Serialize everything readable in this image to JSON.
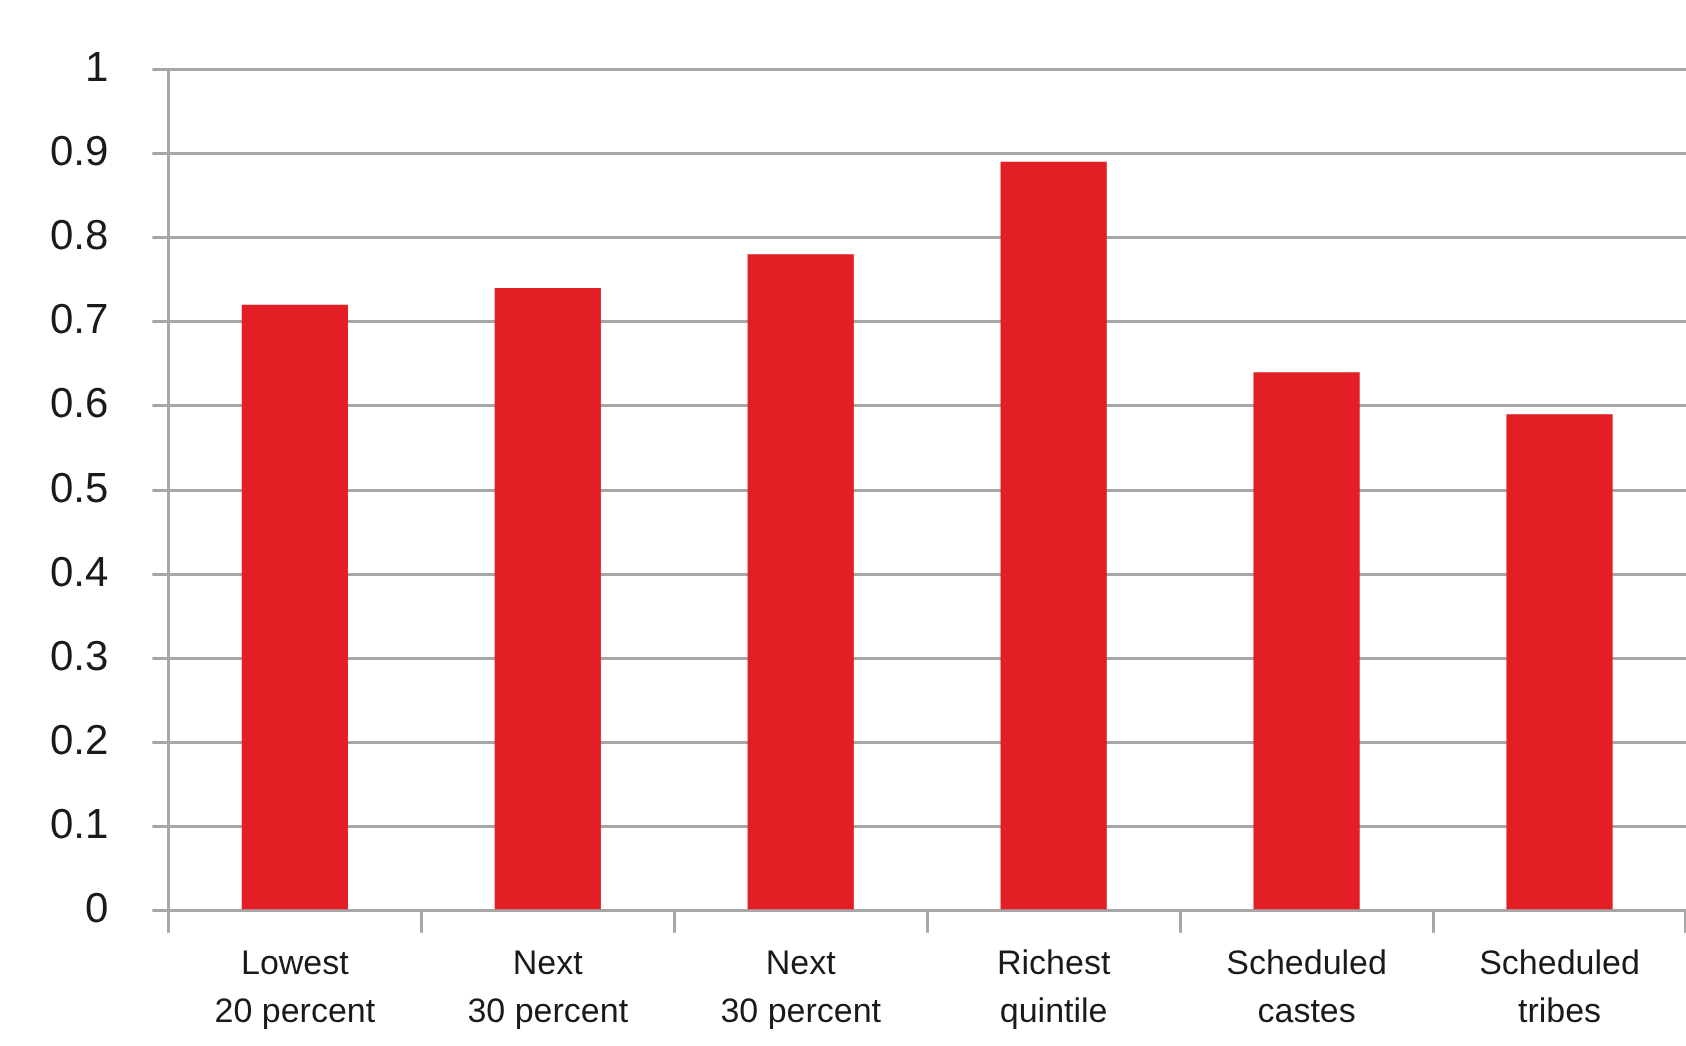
{
  "chart_data": {
    "type": "bar",
    "categories": [
      "Lowest 20 percent",
      "Next 30 percent",
      "Next 30 percent",
      "Richest quintile",
      "Scheduled castes",
      "Scheduled tribes"
    ],
    "values": [
      0.72,
      0.74,
      0.78,
      0.89,
      0.64,
      0.59
    ],
    "color": "#e31e24",
    "ylim": [
      0,
      1
    ],
    "yticks": [
      0,
      0.1,
      0.2,
      0.3,
      0.4,
      0.5,
      0.6,
      0.7,
      0.8,
      0.9,
      1
    ],
    "grid": "y"
  }
}
